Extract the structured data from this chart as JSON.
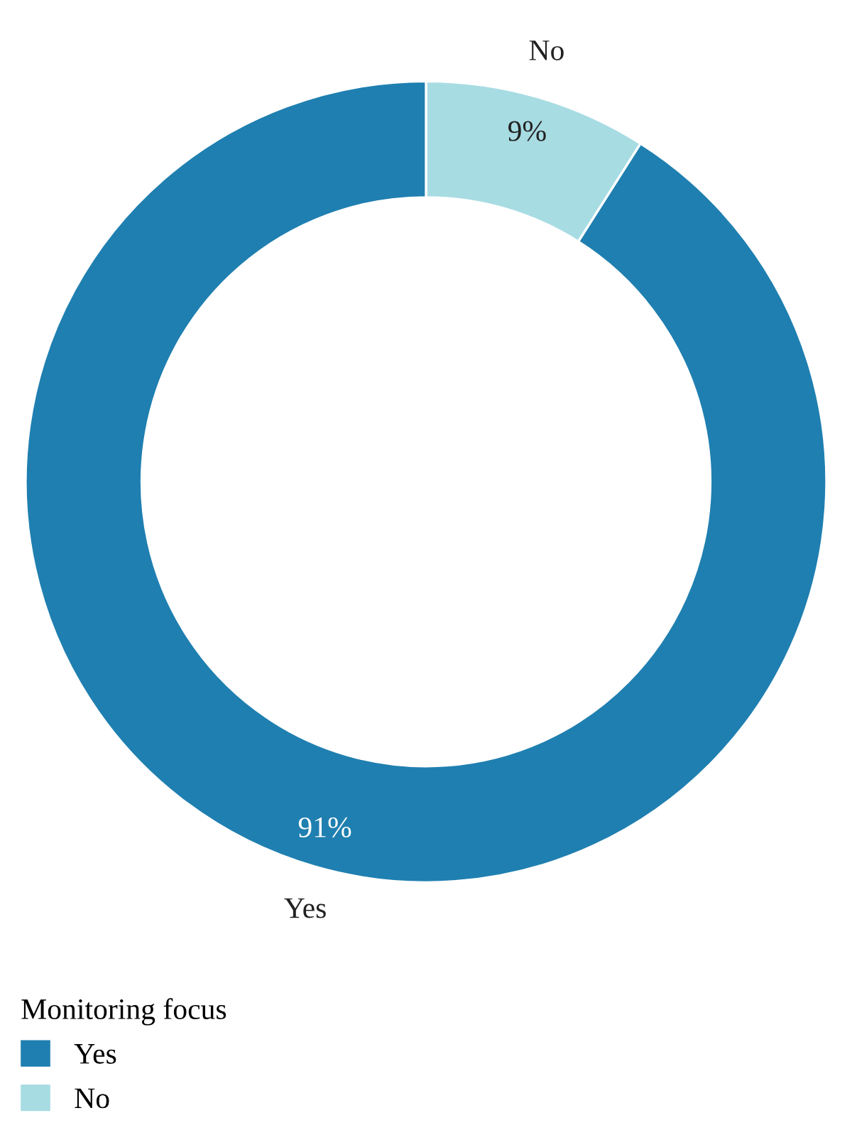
{
  "chart_data": {
    "type": "donut",
    "legend_title": "Monitoring focus",
    "categories": [
      "Yes",
      "No"
    ],
    "values": [
      91,
      9
    ],
    "colors": [
      "#1f7fb0",
      "#a8dce3"
    ],
    "value_labels": [
      "91%",
      "9%"
    ],
    "legend": "bottom left"
  }
}
